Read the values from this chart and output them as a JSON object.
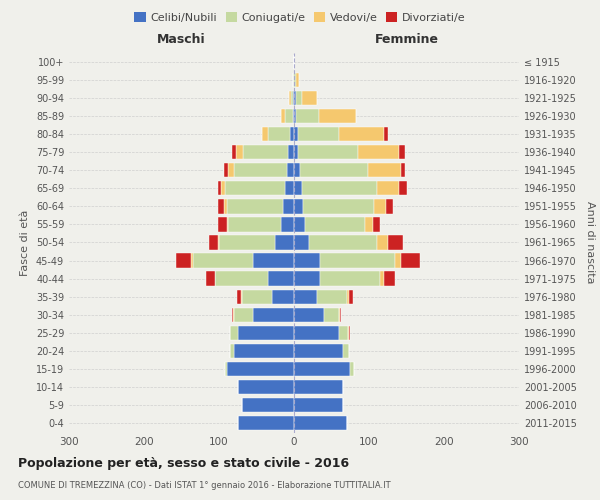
{
  "age_groups": [
    "0-4",
    "5-9",
    "10-14",
    "15-19",
    "20-24",
    "25-29",
    "30-34",
    "35-39",
    "40-44",
    "45-49",
    "50-54",
    "55-59",
    "60-64",
    "65-69",
    "70-74",
    "75-79",
    "80-84",
    "85-89",
    "90-94",
    "95-99",
    "100+"
  ],
  "birth_years": [
    "2011-2015",
    "2006-2010",
    "2001-2005",
    "1996-2000",
    "1991-1995",
    "1986-1990",
    "1981-1985",
    "1976-1980",
    "1971-1975",
    "1966-1970",
    "1961-1965",
    "1956-1960",
    "1951-1955",
    "1946-1950",
    "1941-1945",
    "1936-1940",
    "1931-1935",
    "1926-1930",
    "1921-1925",
    "1916-1920",
    "≤ 1915"
  ],
  "male": {
    "celibe": [
      75,
      70,
      75,
      90,
      80,
      75,
      55,
      30,
      35,
      55,
      25,
      18,
      15,
      12,
      10,
      8,
      5,
      2,
      1,
      0,
      0
    ],
    "coniugato": [
      0,
      0,
      0,
      2,
      5,
      10,
      25,
      40,
      70,
      80,
      75,
      70,
      75,
      80,
      70,
      60,
      30,
      10,
      3,
      1,
      0
    ],
    "vedovo": [
      0,
      0,
      0,
      0,
      0,
      0,
      1,
      1,
      1,
      2,
      2,
      2,
      3,
      5,
      8,
      10,
      8,
      5,
      3,
      1,
      0
    ],
    "divorziato": [
      0,
      0,
      0,
      0,
      0,
      1,
      2,
      5,
      12,
      20,
      12,
      12,
      8,
      5,
      5,
      5,
      0,
      0,
      0,
      0,
      0
    ]
  },
  "female": {
    "nubile": [
      70,
      65,
      65,
      75,
      65,
      60,
      40,
      30,
      35,
      35,
      20,
      15,
      12,
      10,
      8,
      5,
      5,
      3,
      2,
      0,
      0
    ],
    "coniugata": [
      0,
      0,
      0,
      5,
      8,
      12,
      20,
      40,
      80,
      100,
      90,
      80,
      95,
      100,
      90,
      80,
      55,
      30,
      8,
      2,
      0
    ],
    "vedova": [
      0,
      0,
      0,
      0,
      0,
      1,
      1,
      3,
      5,
      8,
      15,
      10,
      15,
      30,
      45,
      55,
      60,
      50,
      20,
      5,
      0
    ],
    "divorziata": [
      0,
      0,
      0,
      0,
      0,
      1,
      2,
      5,
      15,
      25,
      20,
      10,
      10,
      10,
      5,
      8,
      5,
      0,
      0,
      0,
      0
    ]
  },
  "colors": {
    "celibe": "#4472C4",
    "coniugato": "#c5d9a0",
    "vedovo": "#f5c86e",
    "divorziato": "#cc2222"
  },
  "title": "Popolazione per età, sesso e stato civile - 2016",
  "subtitle": "COMUNE DI TREMEZZINA (CO) - Dati ISTAT 1° gennaio 2016 - Elaborazione TUTTITALIA.IT",
  "xlabel_left": "Maschi",
  "xlabel_right": "Femmine",
  "ylabel_left": "Fasce di età",
  "ylabel_right": "Anni di nascita",
  "xlim": 300,
  "legend_labels": [
    "Celibi/Nubili",
    "Coniugati/e",
    "Vedovi/e",
    "Divorziati/e"
  ],
  "bg_color": "#f0f0eb"
}
